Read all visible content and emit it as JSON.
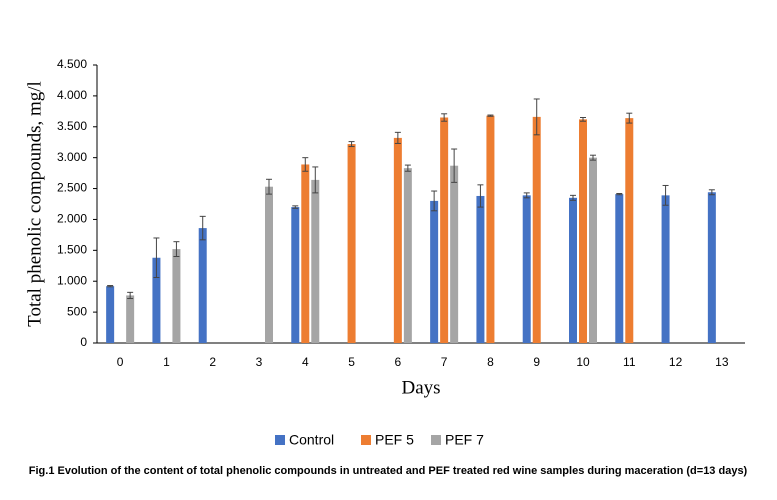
{
  "chart_data": {
    "type": "bar",
    "xlabel": "Days",
    "ylabel": "Total phenolic compounds, mg/l",
    "caption": "Fig.1 Evolution of the content of total phenolic compounds in untreated and PEF treated red wine samples during maceration (d=13 days)",
    "categories": [
      "0",
      "1",
      "2",
      "3",
      "4",
      "5",
      "6",
      "7",
      "8",
      "9",
      "10",
      "11",
      "12",
      "13"
    ],
    "series": [
      {
        "name": "Control",
        "color": "#4472c4",
        "values": [
          920,
          1380,
          1860,
          null,
          2200,
          null,
          null,
          2300,
          2380,
          2390,
          2350,
          2410,
          2390,
          2440
        ],
        "errors": [
          10,
          320,
          190,
          null,
          20,
          null,
          null,
          160,
          180,
          40,
          40,
          10,
          160,
          40
        ]
      },
      {
        "name": "PEF 5",
        "color": "#ed7d31",
        "values": [
          null,
          null,
          null,
          null,
          2890,
          3220,
          3320,
          3650,
          3680,
          3660,
          3620,
          3640,
          null,
          null
        ],
        "errors": [
          null,
          null,
          null,
          null,
          110,
          40,
          90,
          60,
          10,
          290,
          30,
          80,
          null,
          null
        ]
      },
      {
        "name": "PEF 7",
        "color": "#a5a5a5",
        "values": [
          770,
          1520,
          null,
          2530,
          2640,
          null,
          2830,
          2870,
          null,
          null,
          3000,
          null,
          null,
          null
        ],
        "errors": [
          50,
          120,
          null,
          120,
          210,
          null,
          50,
          270,
          null,
          null,
          40,
          null,
          null,
          null
        ]
      }
    ],
    "ylim": [
      0,
      4500
    ],
    "yticks": [
      0,
      500,
      {
        "value": 1000,
        "label": "1.000"
      },
      {
        "value": 1500,
        "label": "1.500"
      },
      {
        "value": 2000,
        "label": "2.000"
      },
      {
        "value": 2500,
        "label": "2.500"
      },
      {
        "value": 3000,
        "label": "3.000"
      },
      {
        "value": 3500,
        "label": "3.500"
      },
      {
        "value": 4000,
        "label": "4.000"
      },
      {
        "value": 4500,
        "label": "4.500"
      }
    ],
    "legend": "bottom",
    "grid": false
  }
}
